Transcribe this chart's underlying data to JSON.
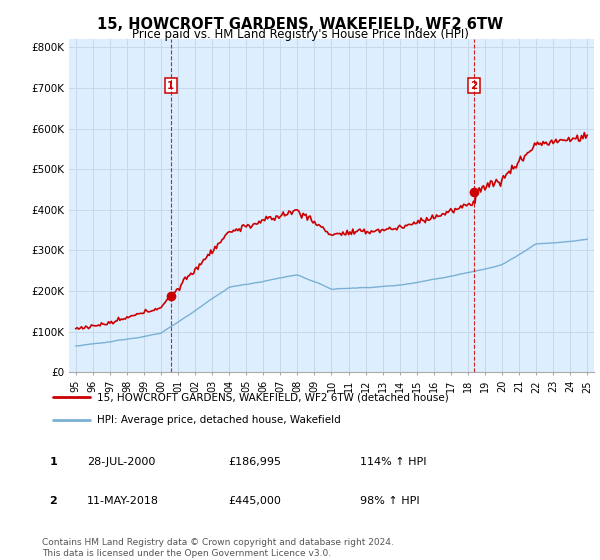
{
  "title": "15, HOWCROFT GARDENS, WAKEFIELD, WF2 6TW",
  "subtitle": "Price paid vs. HM Land Registry's House Price Index (HPI)",
  "title_fontsize": 10.5,
  "subtitle_fontsize": 8.5,
  "ylabel_ticks": [
    "£0",
    "£100K",
    "£200K",
    "£300K",
    "£400K",
    "£500K",
    "£600K",
    "£700K",
    "£800K"
  ],
  "ytick_values": [
    0,
    100000,
    200000,
    300000,
    400000,
    500000,
    600000,
    700000,
    800000
  ],
  "ylim": [
    0,
    820000
  ],
  "xlim_start": 1994.6,
  "xlim_end": 2025.4,
  "xtick_years": [
    1995,
    1996,
    1997,
    1998,
    1999,
    2000,
    2001,
    2002,
    2003,
    2004,
    2005,
    2006,
    2007,
    2008,
    2009,
    2010,
    2011,
    2012,
    2013,
    2014,
    2015,
    2016,
    2017,
    2018,
    2019,
    2020,
    2021,
    2022,
    2023,
    2024,
    2025
  ],
  "red_line_color": "#cc0000",
  "blue_line_color": "#7ab0d4",
  "marker_color": "#cc0000",
  "chart_bg_color": "#ddeeff",
  "point1_x": 2000.57,
  "point1_y": 186995,
  "point2_x": 2018.36,
  "point2_y": 445000,
  "label1": "1",
  "label2": "2",
  "legend_red_label": "15, HOWCROFT GARDENS, WAKEFIELD, WF2 6TW (detached house)",
  "legend_blue_label": "HPI: Average price, detached house, Wakefield",
  "table_rows": [
    {
      "num": "1",
      "date": "28-JUL-2000",
      "price": "£186,995",
      "hpi": "114% ↑ HPI"
    },
    {
      "num": "2",
      "date": "11-MAY-2018",
      "price": "£445,000",
      "hpi": "98% ↑ HPI"
    }
  ],
  "footer": "Contains HM Land Registry data © Crown copyright and database right 2024.\nThis data is licensed under the Open Government Licence v3.0.",
  "background_color": "#ffffff",
  "grid_color": "#c8d8e8"
}
